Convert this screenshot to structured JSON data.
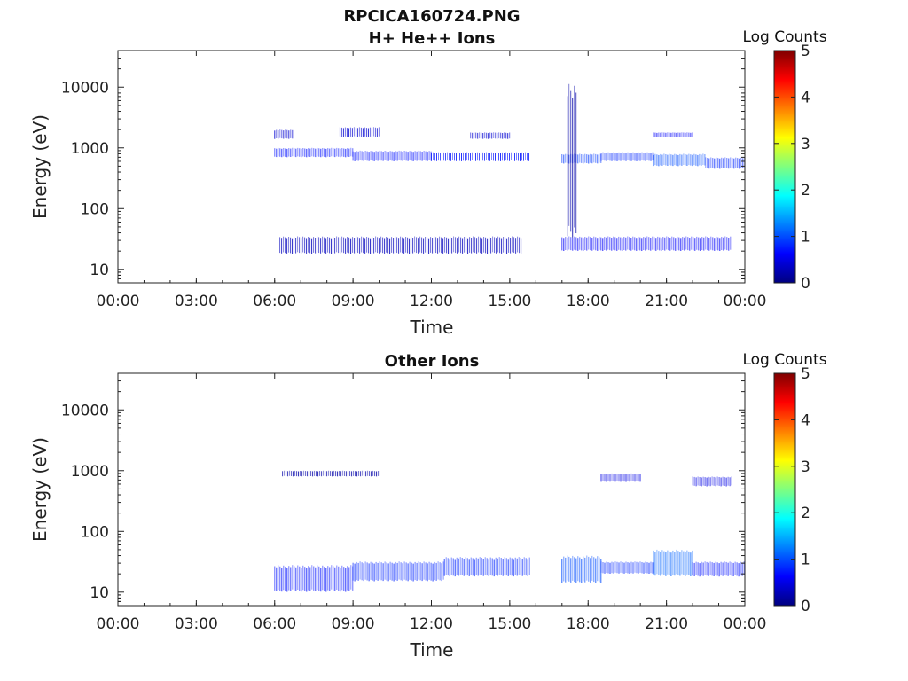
{
  "figure_title": "RPCICA160724.PNG",
  "colorbar": {
    "label": "Log Counts",
    "ticks": [
      "0",
      "1",
      "2",
      "3",
      "4",
      "5"
    ],
    "colormap": [
      "#00007f",
      "#0000ff",
      "#007fff",
      "#00ffff",
      "#7fff7f",
      "#ffff00",
      "#ff7f00",
      "#ff0000",
      "#7f0000"
    ]
  },
  "chart_data": [
    {
      "type": "heatmap",
      "title": "H+ He++ Ions",
      "xlabel": "Time",
      "ylabel": "Energy (eV)",
      "x_ticks": [
        "00:00",
        "03:00",
        "06:00",
        "09:00",
        "12:00",
        "15:00",
        "18:00",
        "21:00",
        "00:00"
      ],
      "xlim_hours": [
        0,
        24
      ],
      "y_ticks": [
        "10",
        "100",
        "1000",
        "10000"
      ],
      "ylim": [
        6,
        40000
      ],
      "y_scale": "log",
      "grid": false,
      "bands": [
        {
          "t_start": 6.0,
          "t_end": 9.0,
          "e_low": 700,
          "e_high": 1000,
          "log_counts": 0.7
        },
        {
          "t_start": 9.0,
          "t_end": 12.0,
          "e_low": 600,
          "e_high": 900,
          "log_counts": 0.7
        },
        {
          "t_start": 12.0,
          "t_end": 15.8,
          "e_low": 600,
          "e_high": 850,
          "log_counts": 0.7
        },
        {
          "t_start": 6.0,
          "t_end": 6.7,
          "e_low": 1400,
          "e_high": 2000,
          "log_counts": 0.4
        },
        {
          "t_start": 8.5,
          "t_end": 10.0,
          "e_low": 1500,
          "e_high": 2200,
          "log_counts": 0.4
        },
        {
          "t_start": 13.5,
          "t_end": 15.0,
          "e_low": 1400,
          "e_high": 1800,
          "log_counts": 0.4
        },
        {
          "t_start": 17.0,
          "t_end": 18.5,
          "e_low": 550,
          "e_high": 800,
          "log_counts": 0.9
        },
        {
          "t_start": 18.5,
          "t_end": 20.5,
          "e_low": 600,
          "e_high": 850,
          "log_counts": 0.8
        },
        {
          "t_start": 20.5,
          "t_end": 22.5,
          "e_low": 500,
          "e_high": 800,
          "log_counts": 1.0
        },
        {
          "t_start": 22.5,
          "t_end": 24.0,
          "e_low": 450,
          "e_high": 700,
          "log_counts": 0.8
        },
        {
          "t_start": 20.5,
          "t_end": 22.0,
          "e_low": 1500,
          "e_high": 1800,
          "log_counts": 0.6
        },
        {
          "t_start": 6.2,
          "t_end": 15.5,
          "e_low": 18,
          "e_high": 35,
          "log_counts": 0.3
        },
        {
          "t_start": 17.0,
          "t_end": 23.5,
          "e_low": 20,
          "e_high": 35,
          "log_counts": 0.6
        },
        {
          "t_start": 17.2,
          "t_end": 17.6,
          "e_low": 30,
          "e_high": 12000,
          "log_counts": 0.2
        }
      ]
    },
    {
      "type": "heatmap",
      "title": "Other Ions",
      "xlabel": "Time",
      "ylabel": "Energy (eV)",
      "x_ticks": [
        "00:00",
        "03:00",
        "06:00",
        "09:00",
        "12:00",
        "15:00",
        "18:00",
        "21:00",
        "00:00"
      ],
      "xlim_hours": [
        0,
        24
      ],
      "y_ticks": [
        "10",
        "100",
        "1000",
        "10000"
      ],
      "ylim": [
        6,
        40000
      ],
      "y_scale": "log",
      "grid": false,
      "bands": [
        {
          "t_start": 6.0,
          "t_end": 9.0,
          "e_low": 10,
          "e_high": 28,
          "log_counts": 0.7
        },
        {
          "t_start": 9.0,
          "t_end": 12.5,
          "e_low": 15,
          "e_high": 32,
          "log_counts": 0.8
        },
        {
          "t_start": 12.5,
          "t_end": 15.8,
          "e_low": 18,
          "e_high": 38,
          "log_counts": 0.8
        },
        {
          "t_start": 17.0,
          "t_end": 18.5,
          "e_low": 14,
          "e_high": 40,
          "log_counts": 1.0
        },
        {
          "t_start": 18.5,
          "t_end": 20.5,
          "e_low": 20,
          "e_high": 32,
          "log_counts": 0.8
        },
        {
          "t_start": 20.5,
          "t_end": 22.0,
          "e_low": 18,
          "e_high": 50,
          "log_counts": 1.1
        },
        {
          "t_start": 22.0,
          "t_end": 24.0,
          "e_low": 18,
          "e_high": 32,
          "log_counts": 0.7
        },
        {
          "t_start": 6.3,
          "t_end": 10.0,
          "e_low": 800,
          "e_high": 1000,
          "log_counts": 0.2
        },
        {
          "t_start": 18.5,
          "t_end": 20.0,
          "e_low": 650,
          "e_high": 900,
          "log_counts": 0.5
        },
        {
          "t_start": 22.0,
          "t_end": 23.5,
          "e_low": 550,
          "e_high": 800,
          "log_counts": 0.5
        }
      ]
    }
  ]
}
